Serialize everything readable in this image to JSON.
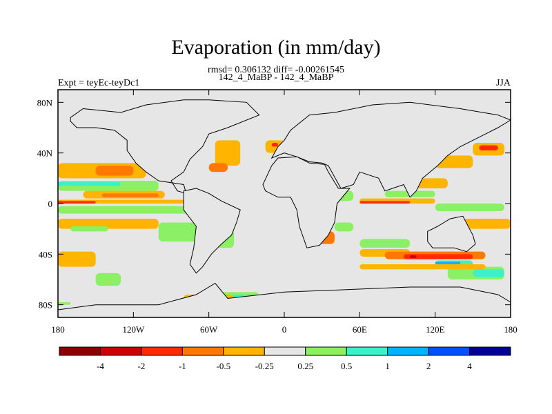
{
  "chart_data": {
    "type": "heatmap",
    "title": "Evaporation (in mm/day)",
    "stats_line": "rmsd= 0.306132 diff= -0.00261545",
    "subtitle": "142_4_MaBP - 142_4_MaBP",
    "left_label": "Expt = teyEc-teyDc1",
    "right_label": "JJA",
    "x_range": [
      -180,
      180
    ],
    "y_range": [
      -90,
      90
    ],
    "x_ticks": [
      {
        "value": -180,
        "label": "180"
      },
      {
        "value": -120,
        "label": "120W"
      },
      {
        "value": -60,
        "label": "60W"
      },
      {
        "value": 0,
        "label": "0"
      },
      {
        "value": 60,
        "label": "60E"
      },
      {
        "value": 120,
        "label": "120E"
      },
      {
        "value": 180,
        "label": "180"
      }
    ],
    "y_ticks": [
      {
        "value": 80,
        "label": "80N"
      },
      {
        "value": 40,
        "label": "40N"
      },
      {
        "value": 0,
        "label": "0"
      },
      {
        "value": -40,
        "label": "40S"
      },
      {
        "value": -80,
        "label": "80S"
      }
    ],
    "colorbar": {
      "colors": [
        "#8b0000",
        "#cc0000",
        "#ff2a00",
        "#ff7800",
        "#ffb400",
        "#e6e6e6",
        "#8cf064",
        "#3cf0c8",
        "#00b4ff",
        "#0050ff",
        "#000096"
      ],
      "labels": [
        "-4",
        "-2",
        "-1",
        "-0.5",
        "-0.25",
        "0.25",
        "0.5",
        "1",
        "2",
        "4"
      ]
    },
    "field_note": "anomaly regions as [lon_min, lon_max, lat_min, lat_max, level_index]",
    "regions": [
      [
        -180,
        -110,
        20,
        32,
        4
      ],
      [
        -150,
        -120,
        22,
        30,
        3
      ],
      [
        -180,
        -100,
        10,
        18,
        6
      ],
      [
        -180,
        -130,
        14,
        17,
        7
      ],
      [
        -160,
        -95,
        4,
        10,
        4
      ],
      [
        -145,
        -100,
        5,
        8,
        3
      ],
      [
        -180,
        -75,
        0,
        3,
        4
      ],
      [
        -180,
        -150,
        0,
        2,
        2
      ],
      [
        -180,
        -60,
        -2,
        -8,
        6
      ],
      [
        -180,
        -100,
        -12,
        -20,
        4
      ],
      [
        -170,
        -140,
        -18,
        -22,
        6
      ],
      [
        -100,
        -65,
        -15,
        -30,
        6
      ],
      [
        -60,
        -40,
        -20,
        -35,
        6
      ],
      [
        -180,
        -150,
        -38,
        -50,
        4
      ],
      [
        -150,
        -130,
        -55,
        -65,
        6
      ],
      [
        -180,
        -170,
        -78,
        -80,
        6
      ],
      [
        -70,
        -20,
        -70,
        -80,
        6
      ],
      [
        -50,
        -25,
        -72,
        -78,
        7
      ],
      [
        -55,
        -35,
        30,
        50,
        4
      ],
      [
        -60,
        -45,
        25,
        32,
        3
      ],
      [
        -15,
        0,
        40,
        50,
        4
      ],
      [
        -10,
        -5,
        45,
        48,
        2
      ],
      [
        30,
        55,
        2,
        10,
        6
      ],
      [
        35,
        40,
        -5,
        5,
        2
      ],
      [
        40,
        55,
        -15,
        -22,
        6
      ],
      [
        20,
        40,
        -22,
        -32,
        3
      ],
      [
        60,
        120,
        0,
        4,
        4
      ],
      [
        60,
        100,
        0,
        2,
        2
      ],
      [
        80,
        120,
        5,
        10,
        6
      ],
      [
        100,
        130,
        12,
        20,
        4
      ],
      [
        120,
        150,
        28,
        38,
        4
      ],
      [
        150,
        175,
        38,
        48,
        4
      ],
      [
        155,
        170,
        42,
        46,
        2
      ],
      [
        120,
        175,
        0,
        -6,
        6
      ],
      [
        130,
        180,
        -12,
        -20,
        4
      ],
      [
        60,
        100,
        -28,
        -35,
        6
      ],
      [
        60,
        100,
        -36,
        -42,
        4
      ],
      [
        80,
        160,
        -38,
        -44,
        3
      ],
      [
        95,
        150,
        -40,
        -44,
        2
      ],
      [
        100,
        105,
        -41,
        -43,
        1
      ],
      [
        120,
        150,
        -45,
        -50,
        7
      ],
      [
        120,
        140,
        -46,
        -48,
        8
      ],
      [
        130,
        175,
        -50,
        -60,
        6
      ],
      [
        150,
        175,
        -52,
        -58,
        7
      ],
      [
        60,
        160,
        -48,
        -52,
        4
      ],
      [
        -80,
        -40,
        -72,
        -78,
        4
      ]
    ],
    "coast_note": "schematic continent outlines as [lon, lat] polygons",
    "continents": [
      [
        [
          -170,
          68
        ],
        [
          -160,
          75
        ],
        [
          -130,
          72
        ],
        [
          -110,
          78
        ],
        [
          -80,
          82
        ],
        [
          -60,
          82
        ],
        [
          -30,
          80
        ],
        [
          -20,
          70
        ],
        [
          -45,
          60
        ],
        [
          -60,
          55
        ],
        [
          -65,
          45
        ],
        [
          -75,
          35
        ],
        [
          -80,
          25
        ],
        [
          -90,
          18
        ],
        [
          -85,
          10
        ],
        [
          -78,
          8
        ],
        [
          -80,
          15
        ],
        [
          -100,
          18
        ],
        [
          -110,
          25
        ],
        [
          -118,
          32
        ],
        [
          -125,
          42
        ],
        [
          -125,
          50
        ],
        [
          -135,
          58
        ],
        [
          -150,
          60
        ],
        [
          -165,
          60
        ],
        [
          -170,
          65
        ]
      ],
      [
        [
          -80,
          10
        ],
        [
          -70,
          12
        ],
        [
          -60,
          8
        ],
        [
          -50,
          2
        ],
        [
          -35,
          -5
        ],
        [
          -38,
          -15
        ],
        [
          -42,
          -25
        ],
        [
          -50,
          -32
        ],
        [
          -58,
          -40
        ],
        [
          -65,
          -50
        ],
        [
          -70,
          -55
        ],
        [
          -75,
          -48
        ],
        [
          -72,
          -35
        ],
        [
          -70,
          -18
        ],
        [
          -80,
          -5
        ],
        [
          -80,
          2
        ]
      ],
      [
        [
          -10,
          36
        ],
        [
          -5,
          45
        ],
        [
          0,
          50
        ],
        [
          5,
          58
        ],
        [
          20,
          70
        ],
        [
          40,
          72
        ],
        [
          70,
          78
        ],
        [
          100,
          80
        ],
        [
          140,
          75
        ],
        [
          170,
          70
        ],
        [
          180,
          66
        ],
        [
          170,
          60
        ],
        [
          160,
          55
        ],
        [
          140,
          45
        ],
        [
          130,
          38
        ],
        [
          122,
          30
        ],
        [
          110,
          20
        ],
        [
          105,
          10
        ],
        [
          100,
          5
        ],
        [
          95,
          15
        ],
        [
          80,
          10
        ],
        [
          75,
          20
        ],
        [
          60,
          25
        ],
        [
          55,
          15
        ],
        [
          45,
          12
        ],
        [
          35,
          30
        ],
        [
          30,
          32
        ],
        [
          20,
          33
        ],
        [
          10,
          37
        ],
        [
          0,
          40
        ]
      ],
      [
        [
          -17,
          15
        ],
        [
          -10,
          30
        ],
        [
          -5,
          36
        ],
        [
          10,
          37
        ],
        [
          20,
          32
        ],
        [
          32,
          31
        ],
        [
          35,
          25
        ],
        [
          43,
          12
        ],
        [
          52,
          12
        ],
        [
          42,
          0
        ],
        [
          40,
          -15
        ],
        [
          35,
          -25
        ],
        [
          28,
          -33
        ],
        [
          18,
          -35
        ],
        [
          12,
          -18
        ],
        [
          10,
          -5
        ],
        [
          5,
          5
        ],
        [
          -5,
          5
        ],
        [
          -15,
          10
        ]
      ],
      [
        [
          114,
          -22
        ],
        [
          122,
          -18
        ],
        [
          132,
          -12
        ],
        [
          142,
          -10
        ],
        [
          150,
          -25
        ],
        [
          152,
          -32
        ],
        [
          145,
          -38
        ],
        [
          135,
          -35
        ],
        [
          118,
          -35
        ],
        [
          114,
          -30
        ]
      ],
      [
        [
          -180,
          -84
        ],
        [
          -150,
          -80
        ],
        [
          -100,
          -80
        ],
        [
          -70,
          -72
        ],
        [
          -55,
          -63
        ],
        [
          -45,
          -75
        ],
        [
          0,
          -70
        ],
        [
          50,
          -68
        ],
        [
          100,
          -66
        ],
        [
          140,
          -66
        ],
        [
          170,
          -72
        ],
        [
          180,
          -78
        ],
        [
          180,
          -90
        ],
        [
          -180,
          -90
        ]
      ]
    ]
  }
}
